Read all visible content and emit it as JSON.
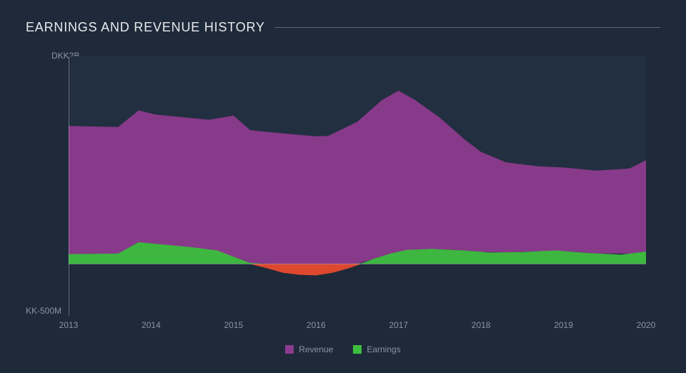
{
  "chart": {
    "type": "area",
    "title": "EARNINGS AND REVENUE HISTORY",
    "title_fontsize": 18,
    "title_color": "#e8eaed",
    "background_color": "#1e2a3a",
    "plot_background_color": "#222f40",
    "axis_line_color": "#c8cdd6",
    "label_color": "#8a93a2",
    "label_fontsize": 12,
    "x": {
      "ticks": [
        "2013",
        "2014",
        "2015",
        "2016",
        "2017",
        "2018",
        "2019",
        "2020"
      ],
      "tick_positions": [
        0,
        1,
        2,
        3,
        4,
        5,
        6,
        7
      ],
      "xlim": [
        0,
        7
      ]
    },
    "y": {
      "ylim": [
        -500,
        2000
      ],
      "tick_top": {
        "pos": 2000,
        "label": "DKK2B"
      },
      "tick_bottom": {
        "pos": -500,
        "label": "KK-500M"
      },
      "zero_line": 0
    },
    "series": {
      "revenue": {
        "label": "Revenue",
        "color": "#8e3b8e",
        "fill_opacity": 0.95,
        "points": [
          [
            0,
            1330
          ],
          [
            0.6,
            1320
          ],
          [
            0.85,
            1480
          ],
          [
            1.05,
            1440
          ],
          [
            1.7,
            1390
          ],
          [
            2.0,
            1430
          ],
          [
            2.2,
            1290
          ],
          [
            2.5,
            1265
          ],
          [
            3.0,
            1230
          ],
          [
            3.15,
            1235
          ],
          [
            3.5,
            1370
          ],
          [
            3.8,
            1580
          ],
          [
            4.0,
            1670
          ],
          [
            4.2,
            1580
          ],
          [
            4.5,
            1410
          ],
          [
            4.8,
            1200
          ],
          [
            5.0,
            1080
          ],
          [
            5.3,
            980
          ],
          [
            5.7,
            940
          ],
          [
            6.0,
            930
          ],
          [
            6.4,
            900
          ],
          [
            6.8,
            920
          ],
          [
            7.0,
            1000
          ]
        ]
      },
      "earnings": {
        "label": "Earnings",
        "color_positive": "#3fbf3f",
        "color_negative": "#e84a2e",
        "fill_opacity": 0.95,
        "points": [
          [
            0,
            95
          ],
          [
            0.6,
            100
          ],
          [
            0.85,
            210
          ],
          [
            1.05,
            195
          ],
          [
            1.5,
            160
          ],
          [
            1.8,
            130
          ],
          [
            2.0,
            70
          ],
          [
            2.2,
            10
          ],
          [
            2.4,
            -40
          ],
          [
            2.6,
            -85
          ],
          [
            2.8,
            -105
          ],
          [
            3.0,
            -110
          ],
          [
            3.2,
            -85
          ],
          [
            3.4,
            -40
          ],
          [
            3.55,
            5
          ],
          [
            3.7,
            50
          ],
          [
            3.9,
            100
          ],
          [
            4.1,
            135
          ],
          [
            4.4,
            145
          ],
          [
            4.8,
            130
          ],
          [
            5.1,
            110
          ],
          [
            5.5,
            115
          ],
          [
            5.9,
            130
          ],
          [
            6.3,
            105
          ],
          [
            6.7,
            90
          ],
          [
            7.0,
            120
          ]
        ]
      }
    },
    "legend": {
      "position": "bottom-center",
      "items": [
        {
          "label": "Revenue",
          "color": "#8e3b8e"
        },
        {
          "label": "Earnings",
          "color": "#3fbf3f"
        }
      ]
    }
  }
}
